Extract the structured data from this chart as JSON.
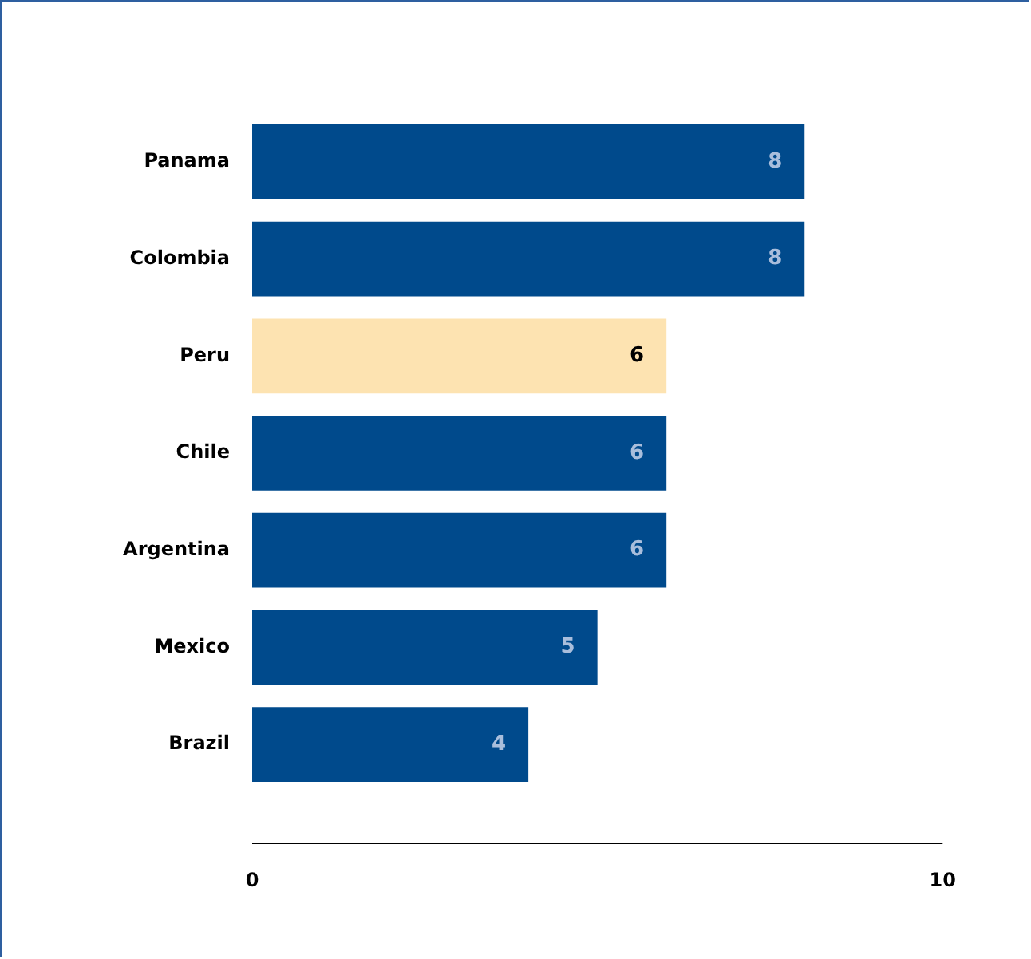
{
  "chart_data": {
    "type": "bar",
    "orientation": "horizontal",
    "categories": [
      "Panama",
      "Colombia",
      "Peru",
      "Chile",
      "Argentina",
      "Mexico",
      "Brazil"
    ],
    "values": [
      8,
      8,
      6,
      6,
      6,
      5,
      4
    ],
    "colors": [
      "#004a8c",
      "#004a8c",
      "#fde3b1",
      "#004a8c",
      "#004a8c",
      "#004a8c",
      "#004a8c"
    ],
    "xlim": [
      0,
      10
    ],
    "xticks": [
      0,
      10
    ],
    "data_labels": true,
    "grid": false,
    "legend": false
  }
}
